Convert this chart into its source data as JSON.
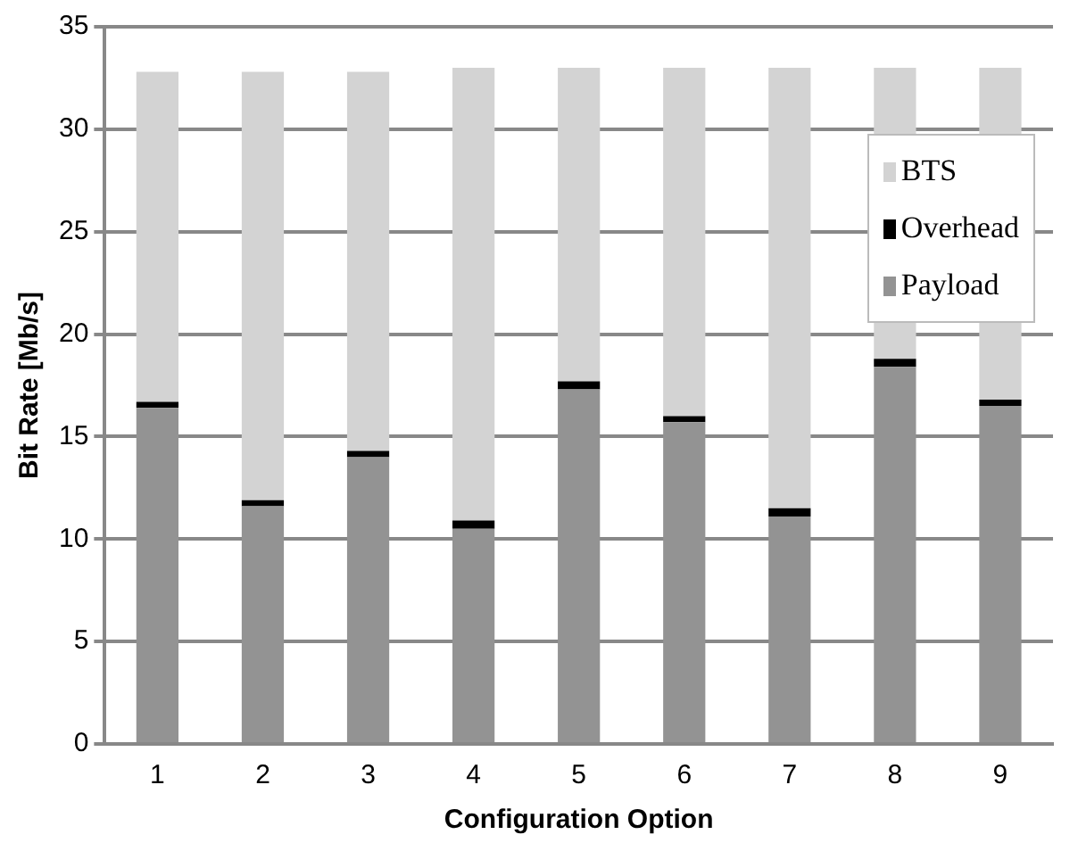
{
  "chart_data": {
    "type": "bar",
    "stacked": true,
    "xlabel": "Configuration Option",
    "ylabel": "Bit Rate [Mb/s]",
    "categories": [
      "1",
      "2",
      "3",
      "4",
      "5",
      "6",
      "7",
      "8",
      "9"
    ],
    "series": [
      {
        "name": "Payload",
        "color": "#939393",
        "values": [
          16.4,
          11.6,
          14.0,
          10.5,
          17.3,
          15.7,
          11.1,
          18.4,
          16.5
        ]
      },
      {
        "name": "Overhead",
        "color": "#000000",
        "values": [
          0.3,
          0.3,
          0.3,
          0.4,
          0.4,
          0.3,
          0.4,
          0.4,
          0.3
        ]
      },
      {
        "name": "BTS",
        "color": "#d3d3d3",
        "values": [
          16.1,
          20.9,
          18.5,
          22.1,
          15.3,
          17.0,
          21.5,
          14.2,
          16.2
        ]
      }
    ],
    "ylim": [
      0,
      35
    ],
    "yticks": [
      0,
      5,
      10,
      15,
      20,
      25,
      30,
      35
    ],
    "grid": "y",
    "legend": "top right"
  }
}
